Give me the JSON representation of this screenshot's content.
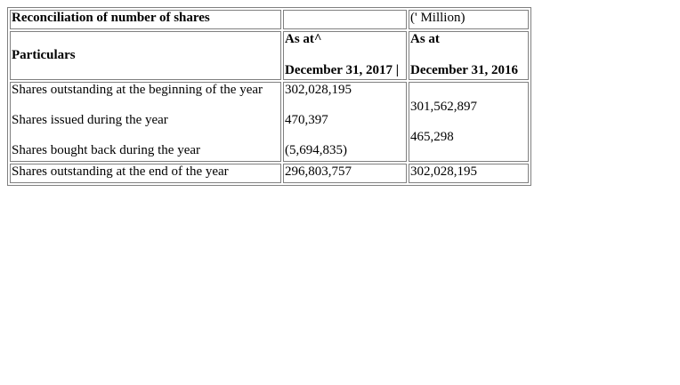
{
  "table": {
    "title": "Reconciliation of number of shares",
    "unit_note": "(' Million)",
    "particulars_header": "Particulars",
    "col2017": {
      "as_at": "As at^",
      "date": "December 31, 2017 |"
    },
    "col2016": {
      "as_at": "As at",
      "date": "December 31, 2016"
    },
    "rows": [
      {
        "label": "Shares outstanding at the beginning of the year",
        "v2017": "302,028,195"
      },
      {
        "label": "Shares issued during the year",
        "v2017": "470,397"
      },
      {
        "label": "Shares bought back during the year",
        "v2017": "(5,694,835)"
      }
    ],
    "v2016_block": [
      "301,562,897",
      "465,298"
    ],
    "total": {
      "label": "Shares outstanding at the end of the year",
      "v2017": "296,803,757",
      "v2016": "302,028,195"
    }
  }
}
